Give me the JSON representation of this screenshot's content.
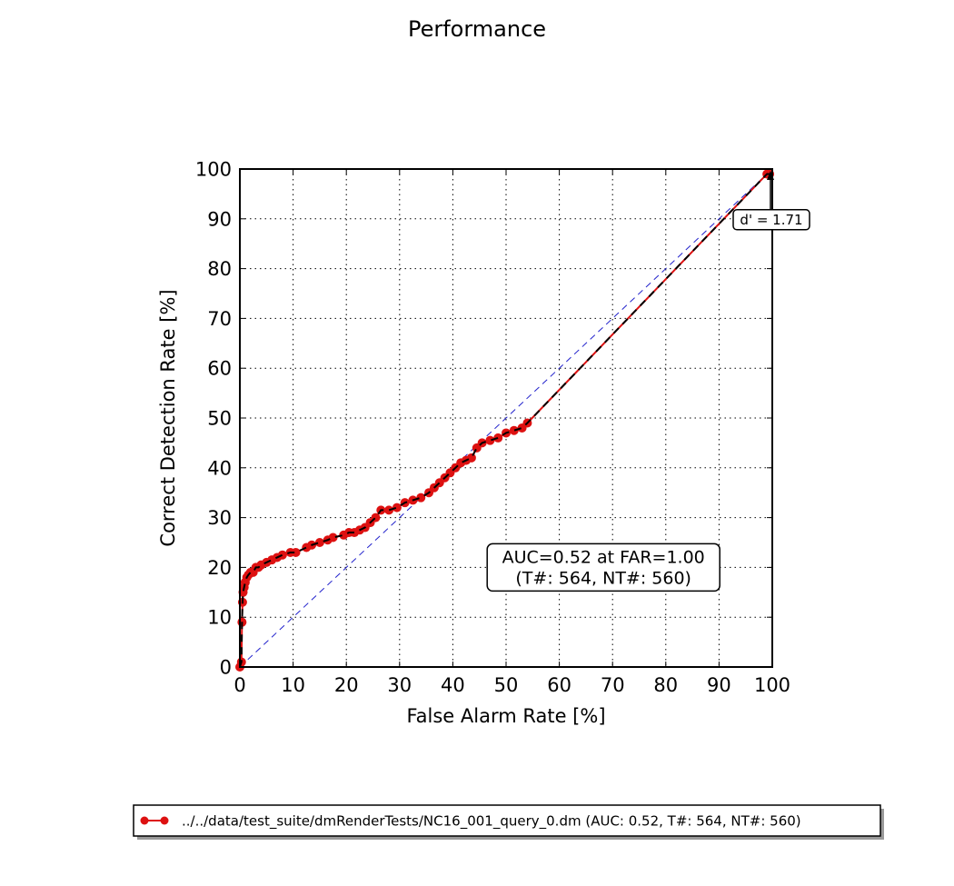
{
  "chart_data": {
    "type": "line",
    "title": "Performance",
    "xlabel": "False Alarm Rate [%]",
    "ylabel": "Correct Detection Rate [%]",
    "xlim": [
      0,
      100
    ],
    "ylim": [
      0,
      100
    ],
    "xticks": [
      0,
      10,
      20,
      30,
      40,
      50,
      60,
      70,
      80,
      90,
      100
    ],
    "yticks": [
      0,
      10,
      20,
      30,
      40,
      50,
      60,
      70,
      80,
      90,
      100
    ],
    "grid": true,
    "legend_position": "bottom",
    "series": [
      {
        "name": "../../data/test_suite/dmRenderTests/NC16_001_query_0.dm (AUC: 0.52, T#: 564, NT#: 560)",
        "color": "#dd1111",
        "marker": "circle",
        "x": [
          0,
          0.3,
          0.4,
          0.5,
          0.6,
          0.8,
          1.0,
          1.3,
          1.6,
          2.0,
          2.5,
          3.0,
          3.5,
          4.0,
          5.0,
          6.0,
          7.0,
          8.0,
          9.5,
          10.5,
          12.5,
          13.5,
          15.0,
          16.5,
          17.5,
          19.5,
          20.5,
          21.5,
          22.5,
          23.5,
          24.5,
          25.5,
          26.5,
          28.0,
          29.5,
          31.0,
          32.5,
          34.0,
          35.5,
          36.5,
          37.5,
          38.5,
          39.5,
          40.5,
          41.5,
          42.5,
          43.5,
          44.5,
          45.5,
          47.0,
          48.5,
          50.0,
          51.5,
          53.0,
          54.0,
          99.0,
          99.5
        ],
        "y": [
          0,
          1,
          9,
          13,
          15,
          16,
          17,
          18,
          18.5,
          19,
          19,
          20,
          20,
          20.5,
          21,
          21.5,
          22,
          22.5,
          23,
          23,
          24,
          24.5,
          25,
          25.5,
          26,
          26.5,
          27,
          27,
          27.5,
          28,
          29,
          30,
          31.5,
          31.5,
          32,
          33,
          33.5,
          34,
          35,
          36,
          37,
          38,
          39,
          40,
          41,
          41.5,
          42,
          44,
          45,
          45.5,
          46,
          47,
          47.5,
          48,
          49,
          99,
          99
        ]
      }
    ],
    "reference_line": {
      "x": [
        0,
        100
      ],
      "y": [
        0,
        100
      ],
      "color": "#2222cc",
      "style": "dashed"
    },
    "annotations": [
      {
        "text": "d' = 1.71",
        "x": 100,
        "y": 90
      },
      {
        "lines": [
          "AUC=0.52 at FAR=1.00",
          "(T#: 564, NT#: 560)"
        ],
        "x": 70,
        "y": 20
      }
    ]
  }
}
